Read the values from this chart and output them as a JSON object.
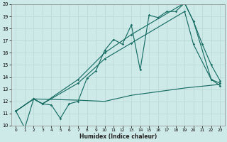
{
  "xlabel": "Humidex (Indice chaleur)",
  "bg_color": "#ceeae8",
  "line_color": "#1a6e64",
  "grid_color": "#b8d8d4",
  "xlim": [
    -0.5,
    23.5
  ],
  "ylim": [
    10,
    20
  ],
  "yticks": [
    10,
    11,
    12,
    13,
    14,
    15,
    16,
    17,
    18,
    19,
    20
  ],
  "xticks": [
    0,
    1,
    2,
    3,
    4,
    5,
    6,
    7,
    8,
    9,
    10,
    11,
    12,
    13,
    14,
    15,
    16,
    17,
    18,
    19,
    20,
    21,
    22,
    23
  ],
  "line_main_x": [
    0,
    1,
    2,
    3,
    4,
    5,
    6,
    7,
    8,
    9,
    10,
    11,
    12,
    13,
    14,
    15,
    16,
    17,
    18,
    19,
    20,
    21,
    22,
    23
  ],
  "line_main_y": [
    11.2,
    9.8,
    12.2,
    11.8,
    11.7,
    10.6,
    11.8,
    12.0,
    13.9,
    14.5,
    16.2,
    17.1,
    16.7,
    18.3,
    14.6,
    19.1,
    18.9,
    19.4,
    19.4,
    20.1,
    18.6,
    16.7,
    15.0,
    13.7
  ],
  "line_upper_x": [
    0,
    2,
    3,
    7,
    10,
    13,
    19,
    20,
    22,
    23
  ],
  "line_upper_y": [
    11.2,
    12.2,
    11.8,
    13.8,
    16.0,
    17.5,
    20.1,
    18.6,
    13.8,
    13.5
  ],
  "line_mid_x": [
    0,
    2,
    3,
    7,
    10,
    13,
    19,
    20,
    22,
    23
  ],
  "line_mid_y": [
    11.2,
    12.2,
    11.8,
    13.5,
    15.5,
    16.8,
    19.4,
    16.7,
    13.8,
    13.3
  ],
  "line_lower_x": [
    0,
    2,
    7,
    10,
    13,
    19,
    23
  ],
  "line_lower_y": [
    11.2,
    12.2,
    12.1,
    12.0,
    12.5,
    13.1,
    13.4
  ]
}
